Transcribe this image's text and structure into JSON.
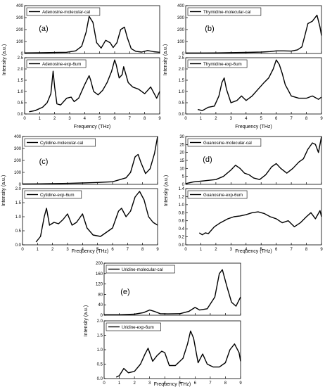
{
  "line_color": "#000000",
  "common": {
    "xlabel": "Frequency (THz)",
    "ylabel": "Intensity (a.u.)",
    "x_ticks": [
      "0",
      "1",
      "2",
      "3",
      "4",
      "5",
      "6",
      "7",
      "8",
      "9"
    ],
    "xlim": [
      0,
      9
    ]
  },
  "chart_data": [
    {
      "type": "line",
      "figure": "(a)",
      "xlabel": "Frequency (THz)",
      "ylabel": "Intensity (a.u.)",
      "panels": [
        {
          "legend": "Adenosine-molecular-cal",
          "ylim": [
            0,
            400
          ],
          "yticks": [
            "0",
            "100",
            "200",
            "300",
            "400"
          ],
          "series": [
            {
              "name": "Adenosine-molecular-cal",
              "x": [
                0,
                1,
                2,
                2.8,
                3.4,
                3.8,
                4.1,
                4.3,
                4.55,
                4.8,
                5.1,
                5.4,
                5.7,
                5.9,
                6.15,
                6.4,
                6.65,
                6.85,
                7.1,
                7.4,
                7.8,
                8.2,
                8.6,
                9
              ],
              "y": [
                5,
                6,
                8,
                10,
                22,
                60,
                180,
                310,
                260,
                90,
                45,
                110,
                90,
                50,
                90,
                200,
                220,
                130,
                40,
                18,
                12,
                25,
                15,
                10
              ]
            }
          ]
        },
        {
          "legend": "Adenosine-exp-6um",
          "ylim": [
            0,
            2.5
          ],
          "yticks": [
            "0.0",
            "0.5",
            "1.0",
            "1.5",
            "2.0",
            "2.5"
          ],
          "series": [
            {
              "name": "Adenosine-exp-6um",
              "x": [
                0.3,
                0.7,
                1.2,
                1.5,
                1.75,
                1.9,
                2.0,
                2.15,
                2.4,
                2.8,
                3.1,
                3.3,
                3.6,
                4.0,
                4.3,
                4.4,
                4.6,
                4.9,
                5.2,
                5.5,
                5.8,
                6.0,
                6.1,
                6.3,
                6.5,
                6.6,
                6.9,
                7.2,
                7.6,
                8.0,
                8.4,
                8.8,
                9.0
              ],
              "y": [
                0.1,
                0.15,
                0.3,
                0.5,
                0.9,
                1.9,
                1.2,
                0.45,
                0.4,
                0.7,
                0.75,
                0.55,
                0.7,
                1.3,
                1.7,
                1.5,
                1.0,
                0.85,
                1.05,
                1.4,
                1.9,
                2.4,
                2.2,
                1.6,
                1.75,
                2.1,
                1.4,
                1.2,
                1.1,
                0.9,
                1.2,
                0.7,
                1.0
              ]
            }
          ]
        }
      ]
    },
    {
      "type": "line",
      "figure": "(b)",
      "xlabel": "Frequency (THz)",
      "ylabel": "Intensity (a.u.)",
      "panels": [
        {
          "legend": "Thymidine-molecular-cal",
          "ylim": [
            0,
            400
          ],
          "yticks": [
            "0",
            "100",
            "200",
            "300",
            "400"
          ],
          "series": [
            {
              "name": "Thymidine-molecular-cal",
              "x": [
                0,
                1,
                2,
                3,
                4,
                5,
                5.6,
                6,
                6.5,
                7,
                7.4,
                7.7,
                7.9,
                8.1,
                8.4,
                8.7,
                8.9,
                9
              ],
              "y": [
                4,
                4,
                5,
                7,
                9,
                12,
                16,
                22,
                22,
                20,
                30,
                55,
                150,
                250,
                270,
                320,
                220,
                150
              ]
            }
          ]
        },
        {
          "legend": "Thymidine-exp-6um",
          "ylim": [
            0,
            2.5
          ],
          "yticks": [
            "0.0",
            "0.5",
            "1.0",
            "1.5",
            "2.0",
            "2.5"
          ],
          "series": [
            {
              "name": "Thymidine-exp-6um",
              "x": [
                0.8,
                1.1,
                1.5,
                1.9,
                2.2,
                2.4,
                2.55,
                2.7,
                3.0,
                3.4,
                3.7,
                4.0,
                4.4,
                4.8,
                5.2,
                5.5,
                5.8,
                6.0,
                6.2,
                6.4,
                6.6,
                7.0,
                7.5,
                8.0,
                8.4,
                8.8,
                9.0
              ],
              "y": [
                0.2,
                0.15,
                0.3,
                0.35,
                0.8,
                1.4,
                1.6,
                1.1,
                0.5,
                0.6,
                0.8,
                0.6,
                0.8,
                1.1,
                1.4,
                1.6,
                2.0,
                2.4,
                2.2,
                1.8,
                1.3,
                0.8,
                0.7,
                0.7,
                0.8,
                0.65,
                0.75
              ]
            }
          ]
        }
      ]
    },
    {
      "type": "line",
      "figure": "(c)",
      "xlabel": "Frequency (THz)",
      "ylabel": "Intensity (a.u.)",
      "panels": [
        {
          "legend": "Cytidine-molecular-cal",
          "ylim": [
            0,
            400
          ],
          "yticks": [
            "0",
            "100",
            "200",
            "300",
            "400"
          ],
          "series": [
            {
              "name": "Cytidine-molecular-cal",
              "x": [
                0,
                1,
                2,
                3,
                4,
                5,
                6,
                6.5,
                6.9,
                7.2,
                7.5,
                7.7,
                7.9,
                8.2,
                8.5,
                8.8,
                9.0
              ],
              "y": [
                3,
                4,
                6,
                8,
                12,
                16,
                22,
                40,
                55,
                100,
                230,
                250,
                180,
                90,
                130,
                260,
                400
              ]
            }
          ]
        },
        {
          "legend": "Cytidine-exp-6um",
          "ylim": [
            0,
            2.0
          ],
          "yticks": [
            "0.0",
            "0.5",
            "1.0",
            "1.5",
            "2.0"
          ],
          "series": [
            {
              "name": "Cytidine-exp-6um",
              "x": [
                0.9,
                1.2,
                1.45,
                1.6,
                1.8,
                2.1,
                2.4,
                2.7,
                3.0,
                3.3,
                3.6,
                4.0,
                4.3,
                4.7,
                5.2,
                5.6,
                6.0,
                6.4,
                6.6,
                6.9,
                7.2,
                7.5,
                7.8,
                8.1,
                8.4,
                8.7,
                9.0
              ],
              "y": [
                0.1,
                0.3,
                1.0,
                1.3,
                0.7,
                0.8,
                0.75,
                0.9,
                1.1,
                0.7,
                0.8,
                1.1,
                0.6,
                0.35,
                0.3,
                0.45,
                0.6,
                1.2,
                1.3,
                1.0,
                1.2,
                1.7,
                1.9,
                1.6,
                1.0,
                0.8,
                0.7
              ]
            }
          ]
        }
      ]
    },
    {
      "type": "line",
      "figure": "(d)",
      "xlabel": "Frequency (THz)",
      "ylabel": "Intensity (a.u.)",
      "panels": [
        {
          "legend": "Guanosine-molecular-cal",
          "ylim": [
            0,
            30
          ],
          "yticks": [
            "0",
            "5",
            "10",
            "15",
            "20",
            "25",
            "30"
          ],
          "series": [
            {
              "name": "Guanosine-molecular-cal",
              "x": [
                0,
                0.5,
                1,
                1.5,
                2,
                2.5,
                3,
                3.3,
                3.6,
                3.9,
                4.2,
                4.5,
                4.9,
                5.3,
                5.7,
                6.0,
                6.3,
                6.7,
                7.1,
                7.5,
                7.8,
                8.1,
                8.4,
                8.6,
                8.8,
                9.0
              ],
              "y": [
                0.5,
                1.5,
                2,
                2.5,
                3,
                5,
                9,
                12,
                10,
                7,
                6,
                4,
                3,
                6,
                11,
                13,
                10,
                7,
                10,
                14,
                16,
                22,
                26,
                25,
                20,
                30
              ]
            }
          ]
        },
        {
          "legend": "Guanosine-exp-6um",
          "ylim": [
            0,
            1.4
          ],
          "yticks": [
            "0.0",
            "0.2",
            "0.4",
            "0.6",
            "0.8",
            "1.0",
            "1.2",
            "1.4"
          ],
          "series": [
            {
              "name": "Guanosine-exp-6um",
              "x": [
                0.9,
                1.1,
                1.3,
                1.5,
                1.9,
                2.3,
                2.8,
                3.2,
                3.6,
                4.0,
                4.4,
                4.8,
                5.2,
                5.6,
                6.0,
                6.4,
                6.8,
                7.2,
                7.6,
                8.0,
                8.3,
                8.6,
                8.9,
                9.0
              ],
              "y": [
                0.3,
                0.25,
                0.3,
                0.28,
                0.45,
                0.55,
                0.65,
                0.7,
                0.72,
                0.75,
                0.8,
                0.82,
                0.78,
                0.7,
                0.65,
                0.55,
                0.6,
                0.45,
                0.55,
                0.7,
                0.8,
                0.65,
                0.85,
                0.7
              ]
            }
          ]
        }
      ]
    },
    {
      "type": "line",
      "figure": "(e)",
      "xlabel": "Frequency (THz)",
      "ylabel": "Intensity (a.u.)",
      "panels": [
        {
          "legend": "Uridine-molecular-cal",
          "ylim": [
            0,
            200
          ],
          "yticks": [
            "0",
            "40",
            "80",
            "120",
            "160",
            "200"
          ],
          "series": [
            {
              "name": "Uridine-molecular-cal",
              "x": [
                0,
                1,
                2,
                2.6,
                3.0,
                3.3,
                3.7,
                4.2,
                5,
                5.6,
                6.0,
                6.3,
                6.8,
                7.3,
                7.6,
                7.8,
                8.1,
                8.4,
                8.7,
                9.0
              ],
              "y": [
                2,
                2,
                4,
                10,
                20,
                15,
                6,
                5,
                6,
                15,
                30,
                20,
                25,
                70,
                160,
                175,
                110,
                50,
                35,
                70
              ]
            }
          ]
        },
        {
          "legend": "Uridine-exp-6um",
          "ylim": [
            0,
            2.0
          ],
          "yticks": [
            "0.0",
            "0.5",
            "1.0",
            "1.5",
            "2.0"
          ],
          "series": [
            {
              "name": "Uridine-exp-6um",
              "x": [
                0.8,
                1.0,
                1.3,
                1.6,
                2.0,
                2.4,
                2.7,
                2.9,
                3.2,
                3.5,
                3.8,
                4.0,
                4.3,
                4.7,
                5.2,
                5.5,
                5.7,
                5.9,
                6.2,
                6.5,
                6.8,
                7.2,
                7.6,
                8.0,
                8.3,
                8.6,
                8.9,
                9.0
              ],
              "y": [
                0.05,
                0.1,
                0.35,
                0.2,
                0.25,
                0.5,
                0.85,
                1.05,
                0.6,
                0.8,
                0.95,
                0.9,
                0.45,
                0.45,
                0.7,
                1.2,
                1.65,
                1.4,
                0.55,
                0.85,
                0.5,
                0.4,
                0.4,
                0.55,
                1.0,
                1.2,
                0.9,
                0.6
              ]
            }
          ]
        }
      ]
    }
  ]
}
